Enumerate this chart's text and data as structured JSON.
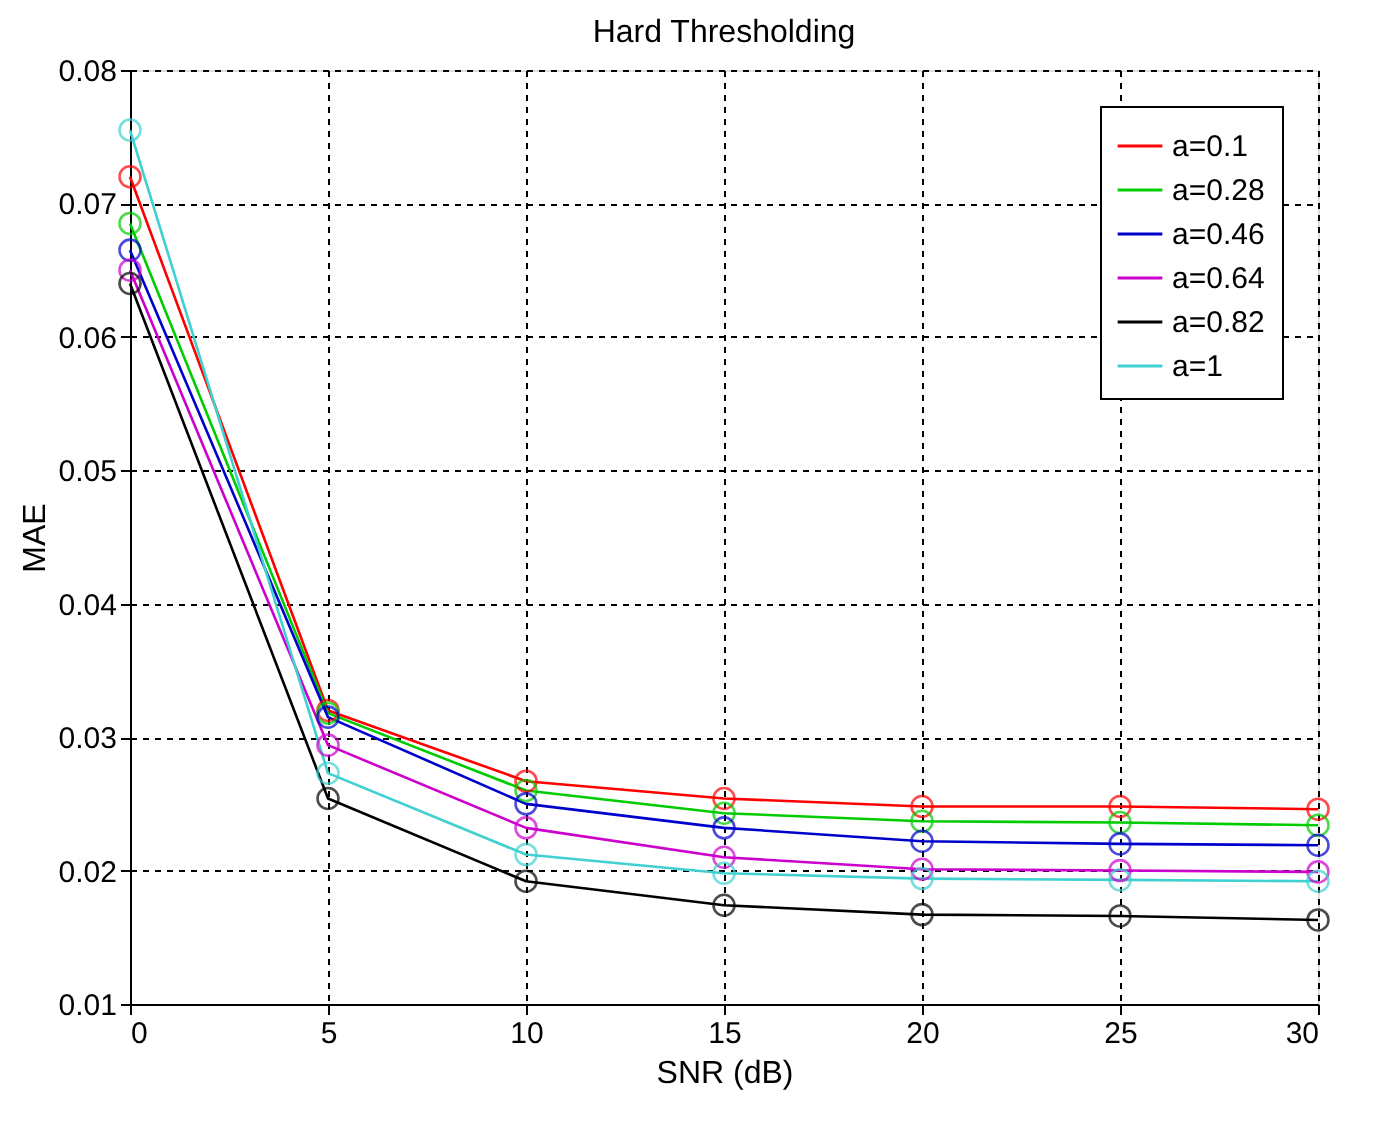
{
  "chart_data": {
    "type": "line",
    "title": "Hard Thresholding",
    "xlabel": "SNR (dB)",
    "ylabel": "MAE",
    "x": [
      0,
      5,
      10,
      15,
      20,
      25,
      30
    ],
    "series": [
      {
        "name": "a=0.1",
        "color": "#ff0000",
        "values": [
          0.072,
          0.032,
          0.0267,
          0.0254,
          0.0248,
          0.0248,
          0.0246
        ]
      },
      {
        "name": "a=0.28",
        "color": "#00cc00",
        "values": [
          0.0685,
          0.0318,
          0.026,
          0.0243,
          0.0237,
          0.0236,
          0.0234
        ]
      },
      {
        "name": "a=0.46",
        "color": "#0000cc",
        "values": [
          0.0665,
          0.0315,
          0.025,
          0.0232,
          0.0222,
          0.022,
          0.0219
        ]
      },
      {
        "name": "a=0.64",
        "color": "#cc00cc",
        "values": [
          0.065,
          0.0294,
          0.0232,
          0.021,
          0.0201,
          0.02,
          0.0199
        ]
      },
      {
        "name": "a=0.82",
        "color": "#000000",
        "values": [
          0.064,
          0.0254,
          0.0192,
          0.0174,
          0.0167,
          0.0166,
          0.0163
        ]
      },
      {
        "name": "a=1",
        "color": "#40d0d0",
        "values": [
          0.0755,
          0.0273,
          0.0212,
          0.0198,
          0.0194,
          0.0193,
          0.0192
        ]
      }
    ],
    "xlim": [
      0,
      30
    ],
    "xticks": [
      0,
      5,
      10,
      15,
      20,
      25,
      30
    ],
    "ylim": [
      0.01,
      0.08
    ],
    "yticks": [
      0.01,
      0.02,
      0.03,
      0.04,
      0.05,
      0.06,
      0.07,
      0.08
    ],
    "grid": true,
    "legend": "top right",
    "marker": "circle",
    "line_style": "solid"
  }
}
